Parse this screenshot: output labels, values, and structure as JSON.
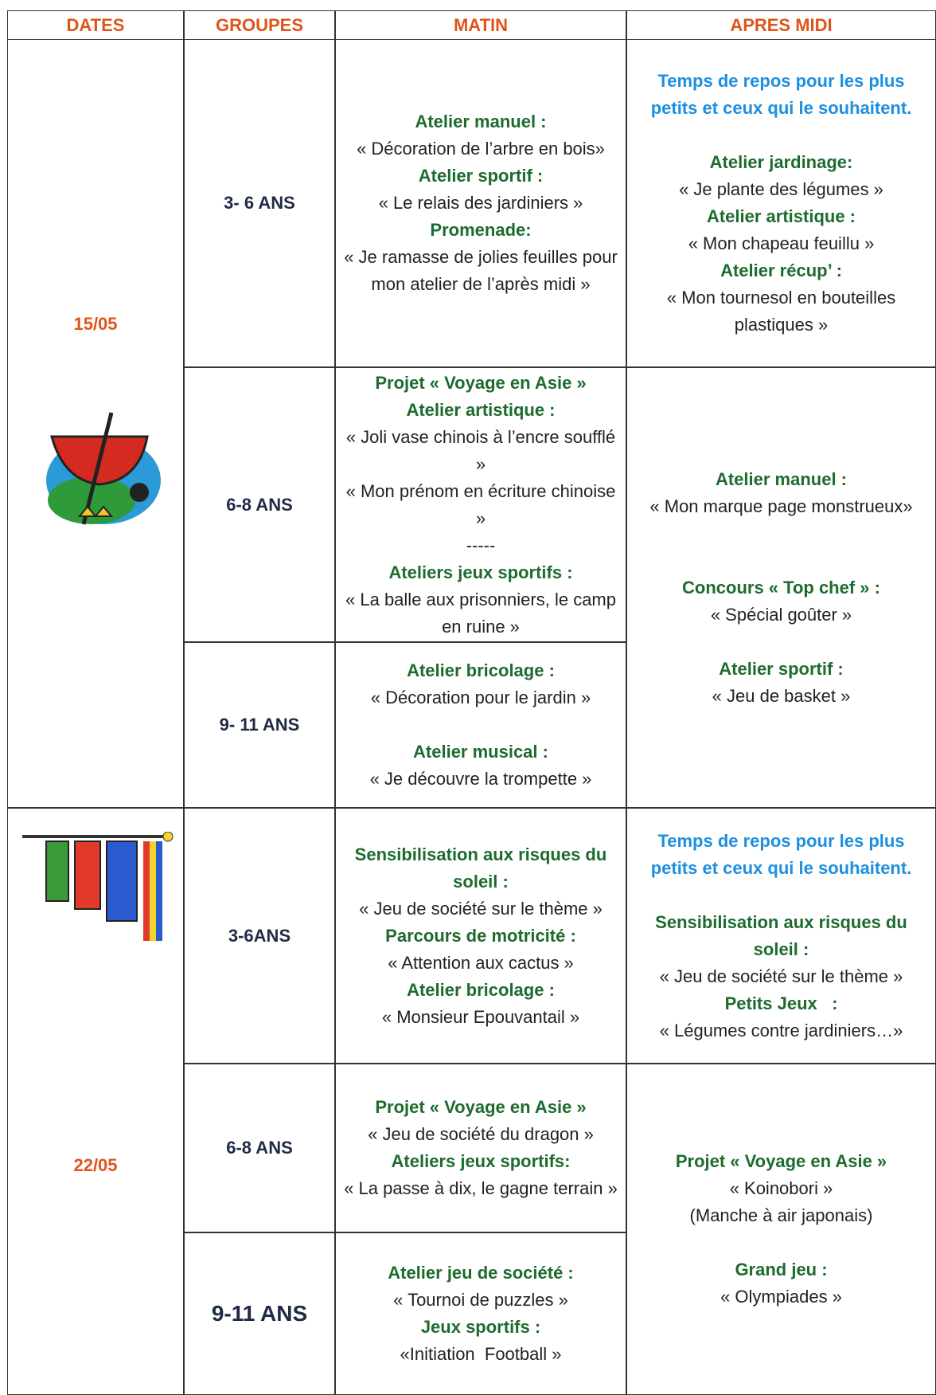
{
  "header": {
    "columns": [
      "DATES",
      "GROUPES",
      "MATIN",
      "APRES MIDI"
    ]
  },
  "weeks": [
    {
      "date": "15/05",
      "groups": [
        {
          "name": "3- 6 ANS",
          "morning": [
            "Atelier manuel :",
            "« Décoration de l’arbre en bois»",
            "Atelier sportif :",
            "« Le relais des jardiniers »",
            "Promenade:",
            "« Je ramasse de jolies feuilles pour mon atelier de l’après midi »"
          ]
        },
        {
          "name": "6-8 ANS",
          "morning": [
            "Projet « Voyage en Asie »",
            "Atelier artistique :",
            "« Joli vase chinois à l’encre soufflé »",
            "« Mon prénom en écriture chinoise »",
            "-----",
            "Ateliers jeux sportifs :",
            "« La balle aux prisonniers, le camp en ruine »"
          ]
        },
        {
          "name": "9- 11 ANS",
          "morning": [
            "Atelier bricolage :",
            "« Décoration pour le jardin »",
            "Atelier musical :",
            "« Je découvre la trompette »"
          ]
        }
      ],
      "afternoon": [
        [
          "Temps de repos pour les plus petits et ceux qui le souhaitent.",
          "Atelier jardinage:",
          "« Je plante des légumes »",
          "Atelier artistique :",
          "« Mon chapeau feuillu »",
          "Atelier récup’ :",
          "« Mon tournesol en bouteilles plastiques »"
        ],
        [
          "Atelier manuel :",
          "« Mon marque page monstrueux»",
          "Concours « Top chef » :",
          "« Spécial goûter »",
          "Atelier sportif :",
          "« Jeu de basket »"
        ]
      ]
    },
    {
      "date": "22/05",
      "groups": [
        {
          "name": "3-6ANS",
          "morning": [
            "Sensibilisation aux risques du soleil :",
            "« Jeu de société sur le thème »",
            "Parcours de motricité :",
            "« Attention aux cactus »",
            "Atelier bricolage :",
            "« Monsieur Epouvantail »"
          ]
        },
        {
          "name": "6-8 ANS",
          "morning": [
            "Projet « Voyage en Asie »",
            "« Jeu de société du dragon »",
            "Ateliers jeux sportifs:",
            "« La passe à dix, le gagne terrain »"
          ]
        },
        {
          "name": "9-11 ANS",
          "morning": [
            "Atelier jeu de société :",
            "« Tournoi de puzzles »",
            "Jeux sportifs :",
            "«Initiation  Football »"
          ]
        }
      ],
      "afternoon": [
        [
          "Temps de repos pour les plus petits et ceux qui le souhaitent.",
          "Sensibilisation aux risques du soleil :",
          "« Jeu de société sur le thème »",
          "Petits Jeux   :",
          "« Légumes contre jardiniers…»"
        ],
        [
          "Projet « Voyage en Asie »",
          "« Koinobori »",
          "(Manche à air japonais)",
          "Grand jeu :",
          "« Olympiades »"
        ]
      ]
    }
  ]
}
